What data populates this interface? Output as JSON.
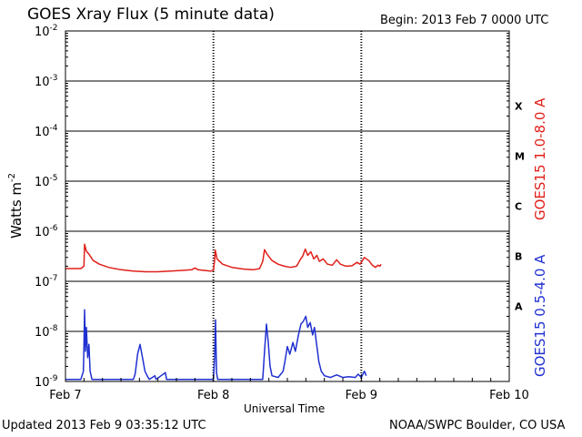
{
  "title": "GOES Xray Flux (5 minute data)",
  "begin": {
    "label": "Begin:",
    "value": "2013 Feb 7 0000 UTC",
    "text": "Begin:  2013 Feb 7 0000 UTC"
  },
  "updated": "Updated 2013 Feb  9 03:35:12 UTC",
  "credit": "NOAA/SWPC Boulder, CO USA",
  "chart_data": {
    "type": "line",
    "xlabel": "Universal Time",
    "ylabel": "Watts m-2",
    "ylabel_base": "Watts m",
    "ylabel_sup": "-2",
    "y_scale": "log",
    "ylim": [
      1e-09,
      0.01
    ],
    "y_ticks": [
      {
        "mantissa": "10",
        "exp": "-9"
      },
      {
        "mantissa": "10",
        "exp": "-8"
      },
      {
        "mantissa": "10",
        "exp": "-7"
      },
      {
        "mantissa": "10",
        "exp": "-6"
      },
      {
        "mantissa": "10",
        "exp": "-5"
      },
      {
        "mantissa": "10",
        "exp": "-4"
      },
      {
        "mantissa": "10",
        "exp": "-3"
      },
      {
        "mantissa": "10",
        "exp": "-2"
      }
    ],
    "xlim": [
      0,
      72
    ],
    "x_unit": "hours since 2013 Feb 7 0000 UTC",
    "x_ticks": [
      {
        "label": "Feb 7",
        "hour": 0
      },
      {
        "label": "Feb 8",
        "hour": 24
      },
      {
        "label": "Feb 9",
        "hour": 48
      },
      {
        "label": "Feb 10",
        "hour": 72
      }
    ],
    "flare_classes": [
      {
        "label": "A",
        "lower": 1e-08
      },
      {
        "label": "B",
        "lower": 1e-07
      },
      {
        "label": "C",
        "lower": 1e-06
      },
      {
        "label": "M",
        "lower": 1e-05
      },
      {
        "label": "X",
        "lower": 0.0001
      }
    ],
    "grid": "horizontal at each decade",
    "series": [
      {
        "name": "GOES15 1.0-8.0 A",
        "color": "#e0201a",
        "points": [
          [
            0.0,
            1.8e-07
          ],
          [
            2.5,
            1.8e-07
          ],
          [
            3.0,
            2e-07
          ],
          [
            3.1,
            5.5e-07
          ],
          [
            3.4,
            4e-07
          ],
          [
            3.8,
            3.5e-07
          ],
          [
            4.5,
            2.6e-07
          ],
          [
            5.5,
            2.2e-07
          ],
          [
            7.0,
            1.9e-07
          ],
          [
            9.0,
            1.7e-07
          ],
          [
            11.0,
            1.6e-07
          ],
          [
            13.0,
            1.55e-07
          ],
          [
            15.0,
            1.55e-07
          ],
          [
            17.0,
            1.6e-07
          ],
          [
            19.0,
            1.65e-07
          ],
          [
            20.5,
            1.7e-07
          ],
          [
            21.0,
            1.85e-07
          ],
          [
            21.5,
            1.7e-07
          ],
          [
            22.5,
            1.65e-07
          ],
          [
            23.5,
            1.6e-07
          ],
          [
            24.0,
            1.65e-07
          ],
          [
            24.2,
            2.6e-07
          ],
          [
            24.3,
            4.2e-07
          ],
          [
            24.6,
            2.8e-07
          ],
          [
            25.5,
            2.2e-07
          ],
          [
            27.0,
            1.9e-07
          ],
          [
            29.0,
            1.75e-07
          ],
          [
            30.5,
            1.7e-07
          ],
          [
            31.5,
            1.8e-07
          ],
          [
            32.0,
            2.5e-07
          ],
          [
            32.3,
            4.3e-07
          ],
          [
            32.7,
            3.5e-07
          ],
          [
            33.5,
            2.6e-07
          ],
          [
            34.5,
            2.2e-07
          ],
          [
            35.5,
            2e-07
          ],
          [
            36.5,
            1.9e-07
          ],
          [
            37.5,
            2e-07
          ],
          [
            38.0,
            2.6e-07
          ],
          [
            38.5,
            3.2e-07
          ],
          [
            38.9,
            4.4e-07
          ],
          [
            39.3,
            3.3e-07
          ],
          [
            39.8,
            3.9e-07
          ],
          [
            40.3,
            2.8e-07
          ],
          [
            40.8,
            3.3e-07
          ],
          [
            41.2,
            2.5e-07
          ],
          [
            41.8,
            2.8e-07
          ],
          [
            42.5,
            2.2e-07
          ],
          [
            43.3,
            2.1e-07
          ],
          [
            44.0,
            2.7e-07
          ],
          [
            44.6,
            2.2e-07
          ],
          [
            45.5,
            2e-07
          ],
          [
            46.5,
            2.05e-07
          ],
          [
            47.3,
            2.4e-07
          ],
          [
            47.8,
            2.2e-07
          ],
          [
            48.5,
            3e-07
          ],
          [
            49.2,
            2.6e-07
          ],
          [
            49.8,
            2.1e-07
          ],
          [
            50.3,
            1.9e-07
          ],
          [
            50.7,
            2.1e-07
          ],
          [
            51.0,
            2e-07
          ],
          [
            51.2,
            2.2e-07
          ]
        ]
      },
      {
        "name": "GOES15 0.5-4.0 A",
        "color": "#2030d0",
        "points": [
          [
            0.0,
            1.1e-09
          ],
          [
            2.5,
            1.1e-09
          ],
          [
            2.9,
            1.6e-09
          ],
          [
            3.0,
            5e-09
          ],
          [
            3.1,
            2.7e-08
          ],
          [
            3.25,
            4e-09
          ],
          [
            3.4,
            1.2e-08
          ],
          [
            3.6,
            3e-09
          ],
          [
            3.8,
            5.5e-09
          ],
          [
            4.0,
            1.6e-09
          ],
          [
            4.3,
            1.1e-09
          ],
          [
            11.0,
            1.1e-09
          ],
          [
            11.3,
            1.4e-09
          ],
          [
            11.7,
            3.5e-09
          ],
          [
            12.1,
            5.5e-09
          ],
          [
            12.5,
            3e-09
          ],
          [
            12.9,
            1.6e-09
          ],
          [
            13.4,
            1.2e-09
          ],
          [
            13.6,
            1.1e-09
          ],
          [
            14.5,
            1.3e-09
          ],
          [
            14.7,
            1.1e-09
          ],
          [
            16.2,
            1.5e-09
          ],
          [
            16.4,
            1.1e-09
          ],
          [
            24.0,
            1.1e-09
          ],
          [
            24.2,
            3e-09
          ],
          [
            24.35,
            1.7e-08
          ],
          [
            24.5,
            1.5e-09
          ],
          [
            24.7,
            1.1e-09
          ],
          [
            32.0,
            1.1e-09
          ],
          [
            32.3,
            4e-09
          ],
          [
            32.6,
            1.4e-08
          ],
          [
            32.9,
            6e-09
          ],
          [
            33.2,
            2e-09
          ],
          [
            33.5,
            1.3e-09
          ],
          [
            34.5,
            1.2e-09
          ],
          [
            35.3,
            1.6e-09
          ],
          [
            35.6,
            2.5e-09
          ],
          [
            36.0,
            5e-09
          ],
          [
            36.4,
            3.5e-09
          ],
          [
            36.9,
            6e-09
          ],
          [
            37.3,
            4e-09
          ],
          [
            37.8,
            8.5e-09
          ],
          [
            38.2,
            1.4e-08
          ],
          [
            38.6,
            1.6e-08
          ],
          [
            39.0,
            2e-08
          ],
          [
            39.3,
            1.2e-08
          ],
          [
            39.7,
            1.5e-08
          ],
          [
            40.1,
            8.5e-09
          ],
          [
            40.4,
            1.2e-08
          ],
          [
            40.8,
            5e-09
          ],
          [
            41.1,
            2.5e-09
          ],
          [
            41.5,
            1.6e-09
          ],
          [
            42.0,
            1.3e-09
          ],
          [
            43.0,
            1.2e-09
          ],
          [
            44.0,
            1.35e-09
          ],
          [
            45.0,
            1.2e-09
          ],
          [
            46.0,
            1.25e-09
          ],
          [
            47.0,
            1.2e-09
          ],
          [
            47.5,
            1.4e-09
          ],
          [
            48.0,
            1.2e-09
          ],
          [
            48.5,
            1.6e-09
          ],
          [
            48.8,
            1.3e-09
          ]
        ]
      }
    ]
  },
  "colors": {
    "red": "#e0201a",
    "blue": "#2030d0",
    "axes": "#000000",
    "background": "#ffffff"
  }
}
